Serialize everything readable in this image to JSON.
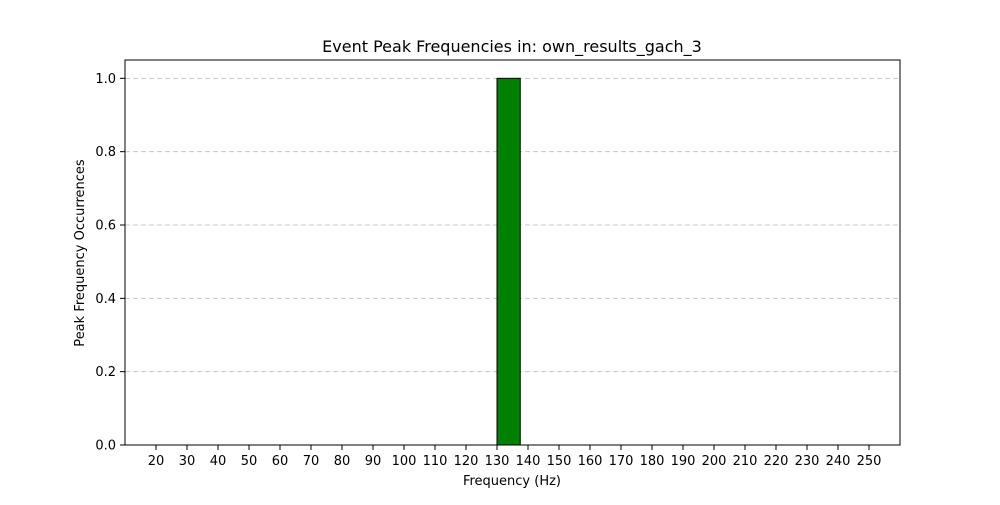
{
  "chart_data": {
    "type": "bar",
    "title": "Event Peak Frequencies in: own_results_gach_3",
    "xlabel": "Frequency (Hz)",
    "ylabel": "Peak Frequency Occurrences",
    "x_ticks": [
      "20",
      "30",
      "40",
      "50",
      "60",
      "70",
      "80",
      "90",
      "100",
      "110",
      "120",
      "130",
      "140",
      "150",
      "160",
      "170",
      "180",
      "190",
      "200",
      "210",
      "220",
      "230",
      "240",
      "250"
    ],
    "y_ticks": [
      "0.0",
      "0.2",
      "0.4",
      "0.6",
      "0.8",
      "1.0"
    ],
    "xlim": [
      10,
      260
    ],
    "ylim": [
      0,
      1.05
    ],
    "bins": [
      {
        "start": 130,
        "end": 137.5,
        "value": 1.0
      }
    ],
    "grid": "y-dashed",
    "bar_color": "#008000",
    "edge_color": "#000000"
  }
}
